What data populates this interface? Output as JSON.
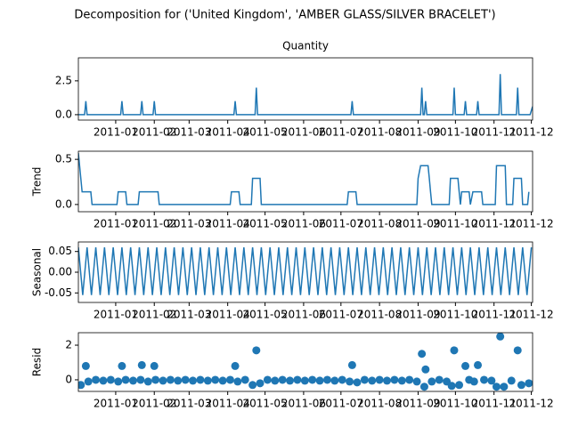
{
  "title": "Decomposition for ('United Kingdom', 'AMBER GLASS/SILVER BRACELET')",
  "chart_data": [
    {
      "type": "line",
      "title": "Quantity",
      "color": "#1f77b4",
      "x": [
        -30,
        -25,
        -24,
        -23,
        4,
        5,
        6,
        20,
        21,
        22,
        30,
        31,
        32,
        95,
        96,
        97,
        112,
        113,
        114,
        189,
        190,
        191,
        245,
        246,
        247,
        248,
        249,
        250,
        271,
        272,
        273,
        280,
        281,
        282,
        290,
        291,
        292,
        308,
        309,
        310,
        322,
        323,
        324,
        333,
        335
      ],
      "values": [
        0,
        0,
        1,
        0,
        0,
        1,
        0,
        0,
        1,
        0,
        0,
        1,
        0,
        0,
        1,
        0,
        0,
        2,
        0,
        0,
        1,
        0,
        0,
        2,
        0,
        0,
        1,
        0,
        0,
        2,
        0,
        0,
        1,
        0,
        0,
        1,
        0,
        0,
        3,
        0,
        0,
        2,
        0,
        0,
        0.6
      ],
      "xlim": [
        -30,
        335
      ],
      "ylim": [
        -0.4,
        4.2
      ],
      "yticks": [
        {
          "value": 0,
          "label": "0.0"
        },
        {
          "value": 2.5,
          "label": "2.5"
        }
      ],
      "xticks": [
        {
          "value": 0,
          "label": "2011-01"
        },
        {
          "value": 31,
          "label": "2011-02"
        },
        {
          "value": 59,
          "label": "2011-03"
        },
        {
          "value": 90,
          "label": "2011-04"
        },
        {
          "value": 120,
          "label": "2011-05"
        },
        {
          "value": 151,
          "label": "2011-06"
        },
        {
          "value": 181,
          "label": "2011-07"
        },
        {
          "value": 212,
          "label": "2011-08"
        },
        {
          "value": 243,
          "label": "2011-09"
        },
        {
          "value": 273,
          "label": "2011-10"
        },
        {
          "value": 304,
          "label": "2011-11"
        },
        {
          "value": 334,
          "label": "2011-12"
        }
      ]
    },
    {
      "type": "line",
      "ylabel": "Trend",
      "color": "#1f77b4",
      "x": [
        -30,
        -27,
        -20,
        -19,
        1,
        2,
        8,
        9,
        18,
        19,
        34,
        35,
        92,
        93,
        99,
        100,
        109,
        110,
        116,
        117,
        186,
        187,
        193,
        194,
        242,
        243,
        245,
        251,
        252,
        253,
        254,
        268,
        269,
        275,
        276,
        277,
        278,
        284,
        285,
        287,
        294,
        295,
        305,
        306,
        313,
        314,
        319,
        320,
        326,
        327,
        331,
        332
      ],
      "values": [
        0.57,
        0.14,
        0.14,
        0,
        0,
        0.14,
        0.14,
        0,
        0,
        0.14,
        0.14,
        0,
        0,
        0.14,
        0.14,
        0,
        0,
        0.29,
        0.29,
        0,
        0,
        0.14,
        0.14,
        0,
        0,
        0.29,
        0.43,
        0.43,
        0.29,
        0.14,
        0,
        0,
        0.29,
        0.29,
        0.14,
        0,
        0.14,
        0.14,
        0,
        0.14,
        0.14,
        0,
        0,
        0.43,
        0.43,
        0,
        0,
        0.29,
        0.29,
        0,
        0,
        0.14
      ],
      "xlim": [
        -30,
        335
      ],
      "ylim": [
        -0.08,
        0.59
      ],
      "yticks": [
        {
          "value": 0,
          "label": "0.0"
        },
        {
          "value": 0.5,
          "label": "0.5"
        }
      ],
      "xticks": [
        {
          "value": 0,
          "label": "2011-01"
        },
        {
          "value": 31,
          "label": "2011-02"
        },
        {
          "value": 59,
          "label": "2011-03"
        },
        {
          "value": 90,
          "label": "2011-04"
        },
        {
          "value": 120,
          "label": "2011-05"
        },
        {
          "value": 151,
          "label": "2011-06"
        },
        {
          "value": 181,
          "label": "2011-07"
        },
        {
          "value": 212,
          "label": "2011-08"
        },
        {
          "value": 243,
          "label": "2011-09"
        },
        {
          "value": 273,
          "label": "2011-10"
        },
        {
          "value": 304,
          "label": "2011-11"
        },
        {
          "value": 334,
          "label": "2011-12"
        }
      ]
    },
    {
      "type": "line",
      "ylabel": "Seasonal",
      "color": "#1f77b4",
      "x": [
        -30,
        -26.5,
        -23,
        -19.5,
        -16,
        -12.5,
        -9,
        -5.5,
        -2,
        1.5,
        5,
        8.5,
        12,
        15.5,
        19,
        22.5,
        26,
        29.5,
        33,
        36.5,
        40,
        43.5,
        47,
        50.5,
        54,
        57.5,
        61,
        64.5,
        68,
        71.5,
        75,
        78.5,
        82,
        85.5,
        89,
        92.5,
        96,
        99.5,
        103,
        106.5,
        110,
        113.5,
        117,
        120.5,
        124,
        127.5,
        131,
        134.5,
        138,
        141.5,
        145,
        148.5,
        152,
        155.5,
        159,
        162.5,
        166,
        169.5,
        173,
        176.5,
        180,
        183.5,
        187,
        190.5,
        194,
        197.5,
        201,
        204.5,
        208,
        211.5,
        215,
        218.5,
        222,
        225.5,
        229,
        232.5,
        236,
        239.5,
        243,
        246.5,
        250,
        253.5,
        257,
        260.5,
        264,
        267.5,
        271,
        274.5,
        278,
        281.5,
        285,
        288.5,
        292,
        295.5,
        299,
        302.5,
        306,
        309.5,
        313,
        316.5,
        320,
        323.5,
        327,
        330.5,
        334
      ],
      "values": [
        0.06,
        -0.055,
        0.06,
        -0.055,
        0.06,
        -0.055,
        0.06,
        -0.055,
        0.06,
        -0.055,
        0.06,
        -0.055,
        0.06,
        -0.055,
        0.06,
        -0.055,
        0.06,
        -0.055,
        0.06,
        -0.055,
        0.06,
        -0.055,
        0.06,
        -0.055,
        0.06,
        -0.055,
        0.06,
        -0.055,
        0.06,
        -0.055,
        0.06,
        -0.055,
        0.06,
        -0.055,
        0.06,
        -0.055,
        0.06,
        -0.055,
        0.06,
        -0.055,
        0.06,
        -0.055,
        0.06,
        -0.055,
        0.06,
        -0.055,
        0.06,
        -0.055,
        0.06,
        -0.055,
        0.06,
        -0.055,
        0.06,
        -0.055,
        0.06,
        -0.055,
        0.06,
        -0.055,
        0.06,
        -0.055,
        0.06,
        -0.055,
        0.06,
        -0.055,
        0.06,
        -0.055,
        0.06,
        -0.055,
        0.06,
        -0.055,
        0.06,
        -0.055,
        0.06,
        -0.055,
        0.06,
        -0.055,
        0.06,
        -0.055,
        0.06,
        -0.055,
        0.06,
        -0.055,
        0.06,
        -0.055,
        0.06,
        -0.055,
        0.06,
        -0.055,
        0.06,
        -0.055,
        0.06,
        -0.055,
        0.06,
        -0.055,
        0.06,
        -0.055,
        0.06,
        -0.055,
        0.06,
        -0.055,
        0.06,
        -0.055,
        0.06,
        -0.055,
        0.06
      ],
      "xlim": [
        -30,
        335
      ],
      "ylim": [
        -0.073,
        0.073
      ],
      "yticks": [
        {
          "value": -0.05,
          "label": "-0.05"
        },
        {
          "value": 0,
          "label": "0.00"
        },
        {
          "value": 0.05,
          "label": "0.05"
        }
      ],
      "xticks": [
        {
          "value": 0,
          "label": "2011-01"
        },
        {
          "value": 31,
          "label": "2011-02"
        },
        {
          "value": 59,
          "label": "2011-03"
        },
        {
          "value": 90,
          "label": "2011-04"
        },
        {
          "value": 120,
          "label": "2011-05"
        },
        {
          "value": 151,
          "label": "2011-06"
        },
        {
          "value": 181,
          "label": "2011-07"
        },
        {
          "value": 212,
          "label": "2011-08"
        },
        {
          "value": 243,
          "label": "2011-09"
        },
        {
          "value": 273,
          "label": "2011-10"
        },
        {
          "value": 304,
          "label": "2011-11"
        },
        {
          "value": 334,
          "label": "2011-12"
        }
      ]
    },
    {
      "type": "scatter",
      "ylabel": "Resid",
      "color": "#1f77b4",
      "x": [
        -28,
        -22,
        -16,
        -10,
        -4,
        2,
        8,
        14,
        20,
        26,
        32,
        38,
        44,
        50,
        56,
        62,
        68,
        74,
        80,
        86,
        92,
        98,
        104,
        110,
        116,
        122,
        128,
        134,
        140,
        146,
        152,
        158,
        164,
        170,
        176,
        182,
        188,
        194,
        200,
        206,
        212,
        218,
        224,
        230,
        236,
        242,
        248,
        254,
        260,
        266,
        270,
        276,
        284,
        288,
        296,
        302,
        306,
        312,
        318,
        326,
        332,
        -24,
        5,
        21,
        31,
        96,
        113,
        190,
        246,
        249,
        272,
        281,
        291,
        309,
        323
      ],
      "values": [
        -0.3,
        -0.1,
        0,
        -0.05,
        0,
        -0.1,
        0,
        -0.05,
        0,
        -0.1,
        0,
        -0.05,
        0,
        -0.05,
        0,
        -0.05,
        0,
        -0.05,
        0,
        -0.05,
        0,
        -0.1,
        0,
        -0.3,
        -0.2,
        0,
        -0.05,
        0,
        -0.05,
        0,
        -0.05,
        0,
        -0.05,
        0,
        -0.05,
        0,
        -0.1,
        -0.15,
        0,
        -0.05,
        0,
        -0.05,
        0,
        -0.05,
        0,
        -0.1,
        -0.4,
        -0.1,
        0,
        -0.1,
        -0.35,
        -0.3,
        0,
        -0.1,
        0,
        -0.05,
        -0.4,
        -0.4,
        -0.05,
        -0.3,
        -0.2,
        0.8,
        0.8,
        0.85,
        0.8,
        0.8,
        1.7,
        0.85,
        1.5,
        0.6,
        1.7,
        0.8,
        0.85,
        2.5,
        1.7
      ],
      "xlim": [
        -30,
        335
      ],
      "ylim": [
        -0.67,
        2.72
      ],
      "yticks": [
        0,
        2
      ],
      "xticks": [
        {
          "value": 0,
          "label": "2011-01"
        },
        {
          "value": 31,
          "label": "2011-02"
        },
        {
          "value": 59,
          "label": "2011-03"
        },
        {
          "value": 90,
          "label": "2011-04"
        },
        {
          "value": 120,
          "label": "2011-05"
        },
        {
          "value": 151,
          "label": "2011-06"
        },
        {
          "value": 181,
          "label": "2011-07"
        },
        {
          "value": 212,
          "label": "2011-08"
        },
        {
          "value": 243,
          "label": "2011-09"
        },
        {
          "value": 273,
          "label": "2011-10"
        },
        {
          "value": 304,
          "label": "2011-11"
        },
        {
          "value": 334,
          "label": "2011-12"
        }
      ]
    }
  ]
}
